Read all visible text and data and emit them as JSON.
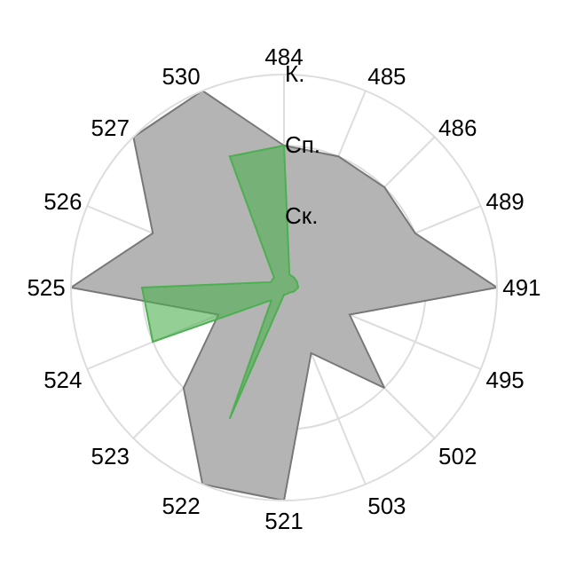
{
  "chart_data": {
    "type": "radar",
    "categories": [
      "484",
      "485",
      "486",
      "489",
      "491",
      "495",
      "502",
      "503",
      "521",
      "522",
      "523",
      "524",
      "525",
      "526",
      "527",
      "530"
    ],
    "series": [
      {
        "color": "#b4b4b4",
        "values": [
          2,
          2,
          2,
          2,
          3,
          1,
          2,
          1,
          3,
          3,
          2,
          1,
          3,
          2,
          3,
          3
        ]
      },
      {
        "color": "#4caf50",
        "values": [
          2,
          0.2,
          0.2,
          0.2,
          0.2,
          0.15,
          0.1,
          0.1,
          0.1,
          2,
          0.25,
          2,
          2,
          0.2,
          0.2,
          2
        ]
      }
    ],
    "ylim": [
      0,
      3
    ],
    "yticks": [
      {
        "value": 1,
        "label": "Ск."
      },
      {
        "value": 2,
        "label": "Сп."
      },
      {
        "value": 3,
        "label": "К."
      }
    ],
    "grid": true
  }
}
